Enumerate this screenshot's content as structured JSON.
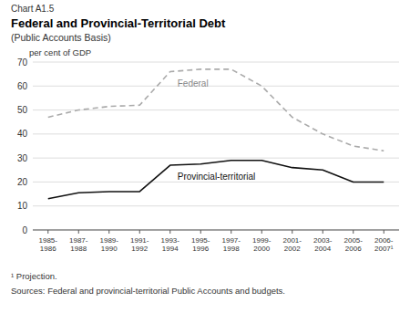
{
  "chart_data": {
    "type": "line",
    "chart_label": "Chart A1.5",
    "title": "Federal and Provincial-Territorial Debt",
    "subtitle": "(Public Accounts Basis)",
    "y_label": "per cent of GDP",
    "categories": [
      "1985-\n1986",
      "1987-\n1988",
      "1989-\n1990",
      "1991-\n1992",
      "1993-\n1994",
      "1995-\n1996",
      "1997-\n1998",
      "1999-\n2000",
      "2001-\n2002",
      "2003-\n2004",
      "2005-\n2006",
      "2006-\n2007¹"
    ],
    "series": [
      {
        "name": "Federal",
        "color": "#aaaaaa",
        "line_style": "dashed",
        "values": [
          47,
          50,
          51.5,
          52,
          66,
          67,
          67,
          60,
          47,
          40,
          35,
          33
        ]
      },
      {
        "name": "Provincial-territorial",
        "color": "#111111",
        "line_style": "solid",
        "values": [
          13,
          15.5,
          16,
          16,
          27,
          27.5,
          29,
          29,
          26,
          25,
          20,
          20
        ]
      }
    ],
    "ylim": [
      0,
      70
    ],
    "yticks": [
      0,
      10,
      20,
      30,
      40,
      50,
      60,
      70
    ],
    "grid": true,
    "footnote": "¹ Projection.",
    "source": "Sources: Federal and provincial-territorial Public Accounts and budgets."
  }
}
